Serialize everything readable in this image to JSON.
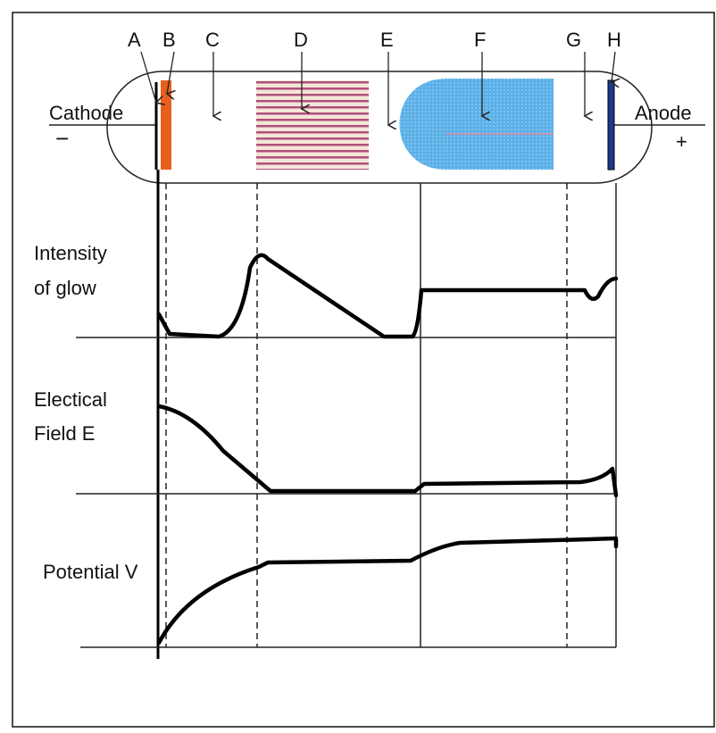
{
  "labels": [
    "A",
    "B",
    "C",
    "D",
    "E",
    "F",
    "G",
    "H"
  ],
  "tube": {
    "cathode": "Cathode",
    "cathode_sign": "−",
    "anode": "Anode",
    "anode_sign": "+"
  },
  "plots": [
    {
      "label_lines": [
        "Intensity",
        "of glow"
      ]
    },
    {
      "label_lines": [
        "Electical",
        "Field E"
      ]
    },
    {
      "label_lines": [
        "Potential V"
      ]
    }
  ]
}
